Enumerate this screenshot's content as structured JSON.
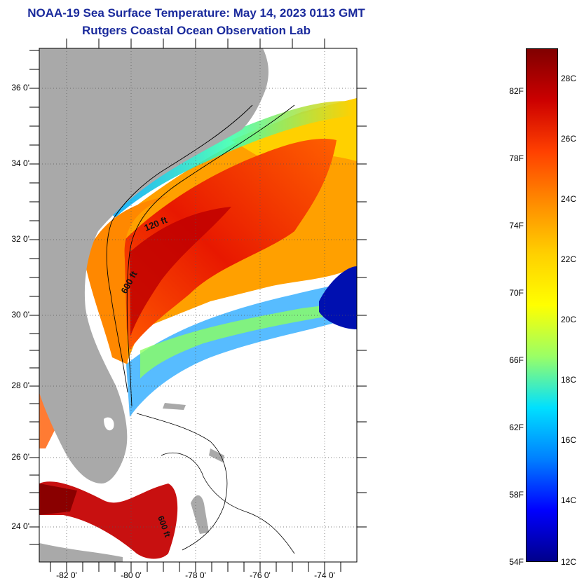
{
  "header": {
    "title_line1": "NOAA-19 Sea Surface Temperature:  May 14, 2023 0113 GMT",
    "title_line2": "Rutgers Coastal Ocean Observation Lab"
  },
  "map": {
    "lat_labels": [
      "36 0'",
      "34 0'",
      "32 0'",
      "30 0'",
      "28 0'",
      "26 0'",
      "24 0'"
    ],
    "lon_labels": [
      "-82 0'",
      "-80 0'",
      "-78 0'",
      "-76 0'",
      "-74 0'"
    ],
    "contour_labels": [
      "120 ft",
      "600 ft",
      "600 ft"
    ],
    "colors": {
      "land": "#a9a9a9",
      "no_data": "#ffffff"
    }
  },
  "colorbar": {
    "fahrenheit_labels": [
      "82F",
      "78F",
      "74F",
      "70F",
      "66F",
      "62F",
      "58F",
      "54F"
    ],
    "celsius_labels": [
      "28C",
      "26C",
      "24C",
      "22C",
      "20C",
      "18C",
      "16C",
      "14C",
      "12C"
    ],
    "colors": [
      "#800000",
      "#cc0000",
      "#ff4000",
      "#ff8c00",
      "#ffd000",
      "#ffff00",
      "#9aff66",
      "#00e0ff",
      "#0080ff",
      "#0000ff",
      "#00008b"
    ]
  }
}
